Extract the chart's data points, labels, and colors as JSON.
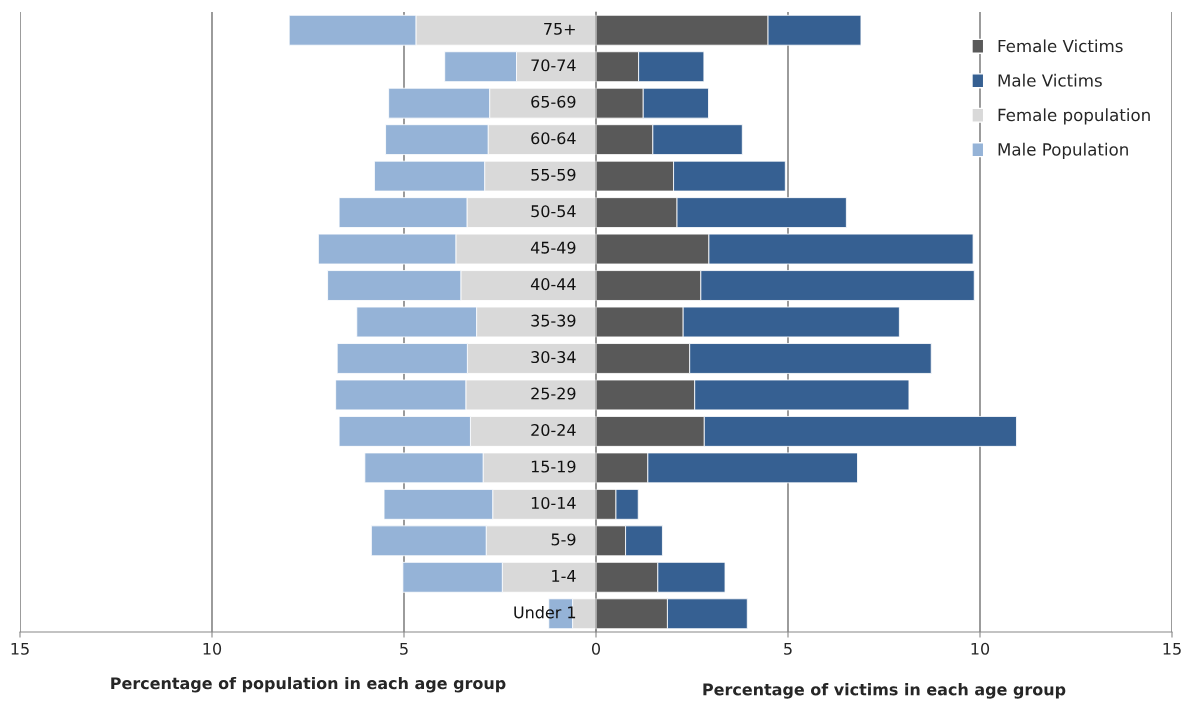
{
  "chart_data": {
    "type": "bar",
    "orientation": "horizontal",
    "stacked": true,
    "xlabel": "Percentage of population in each age group",
    "annotations": [
      "Percentage of victims in each age group"
    ],
    "xlim": [
      -15,
      15
    ],
    "xticks": [
      {
        "value": -15,
        "label": "15"
      },
      {
        "value": -10,
        "label": "10"
      },
      {
        "value": -5,
        "label": "5"
      },
      0,
      5,
      10,
      15
    ],
    "grid": "x",
    "legend": "top right",
    "categories": [
      "75+",
      "70-74",
      "65-69",
      "60-64",
      "55-59",
      "50-54",
      "45-49",
      "40-44",
      "35-39",
      "30-34",
      "25-29",
      "20-24",
      "15-19",
      "10-14",
      "5-9",
      "1-4",
      "Under 1"
    ],
    "series": [
      {
        "name": "Female Victims",
        "color": "#595959",
        "values": [
          4.48,
          1.11,
          1.23,
          1.48,
          2.02,
          2.11,
          2.94,
          2.73,
          2.27,
          2.44,
          2.57,
          2.82,
          1.35,
          0.52,
          0.77,
          1.61,
          1.86
        ]
      },
      {
        "name": "Male Victims",
        "color": "#366092",
        "values": [
          2.42,
          1.7,
          1.7,
          2.33,
          2.91,
          4.41,
          6.88,
          7.12,
          5.63,
          6.29,
          5.58,
          8.13,
          5.46,
          0.58,
          0.96,
          1.75,
          2.08
        ]
      },
      {
        "name": "Female population",
        "color": "#d9d9d9",
        "values": [
          -4.69,
          -2.07,
          -2.77,
          -2.81,
          -2.9,
          -3.36,
          -3.65,
          -3.52,
          -3.11,
          -3.35,
          -3.39,
          -3.27,
          -2.94,
          -2.69,
          -2.86,
          -2.44,
          -0.61
        ]
      },
      {
        "name": "Male Population",
        "color": "#95b3d7",
        "values": [
          -3.3,
          -1.87,
          -2.63,
          -2.67,
          -2.87,
          -3.33,
          -3.58,
          -3.47,
          -3.12,
          -3.39,
          -3.39,
          -3.42,
          -3.08,
          -2.83,
          -2.99,
          -2.59,
          -0.62
        ]
      }
    ]
  }
}
